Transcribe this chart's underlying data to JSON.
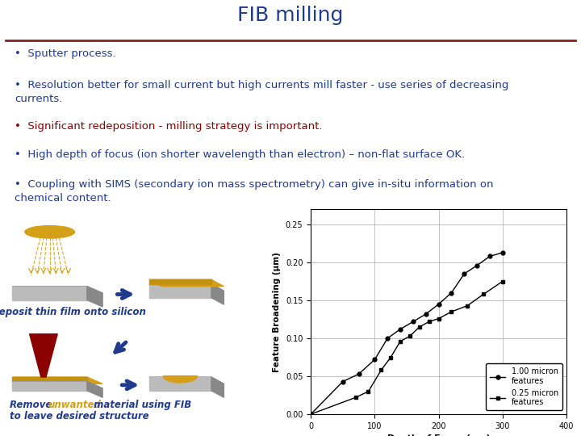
{
  "title": "FIB milling",
  "title_color": "#1F3A8F",
  "title_fontsize": 18,
  "separator_color": "#8B2020",
  "bg_color": "#FFFFFF",
  "bullet_fontsize": 9.5,
  "bullets": [
    {
      "text": "Sputter process.",
      "color": "#1F3A8F"
    },
    {
      "text": "Resolution better for small current but high currents mill faster - use series of decreasing currents.",
      "color": "#1F3A8F"
    },
    {
      "text": "Significant redeposition - milling strategy is important.",
      "color": "#8B0000"
    },
    {
      "text": "High depth of focus (ion shorter wavelength than electron) – non-flat surface OK.",
      "color": "#1F3A8F"
    },
    {
      "text": "Coupling with SIMS (secondary ion mass spectrometry) can give in-situ information on chemical content.",
      "color": "#1F3A8F"
    }
  ],
  "graph_xlim": [
    0,
    400
  ],
  "graph_ylim": [
    0.0,
    0.27
  ],
  "graph_xticks": [
    0,
    100,
    200,
    300,
    400
  ],
  "graph_yticks": [
    0.0,
    0.05,
    0.1,
    0.15,
    0.2,
    0.25
  ],
  "graph_xlabel": "Depth of Focus (μm)",
  "graph_ylabel": "Feature Broadening (μm)",
  "series1_label": "1.00 micron\nfeatures",
  "series2_label": "0.25 micron\nfeatures",
  "series1_x": [
    0,
    50,
    75,
    100,
    120,
    140,
    160,
    180,
    200,
    220,
    240,
    260,
    280,
    300
  ],
  "series1_y": [
    0.0,
    0.043,
    0.053,
    0.072,
    0.1,
    0.112,
    0.122,
    0.132,
    0.145,
    0.16,
    0.185,
    0.196,
    0.208,
    0.213
  ],
  "series2_x": [
    0,
    70,
    90,
    110,
    125,
    140,
    155,
    170,
    185,
    200,
    220,
    245,
    270,
    300
  ],
  "series2_y": [
    0.0,
    0.022,
    0.03,
    0.058,
    0.075,
    0.096,
    0.103,
    0.115,
    0.122,
    0.126,
    0.135,
    0.143,
    0.158,
    0.175
  ],
  "img_text1_color": "#1F3A8F",
  "img_text2_main": "#1F3A8F",
  "img_text2_highlight": "#D4A017",
  "arrow_color": "#1F3A8F",
  "cone_color": "#8B0000",
  "yellow_color": "#D4A017",
  "gray_dark": "#888888",
  "gray_light": "#BBBBBB"
}
